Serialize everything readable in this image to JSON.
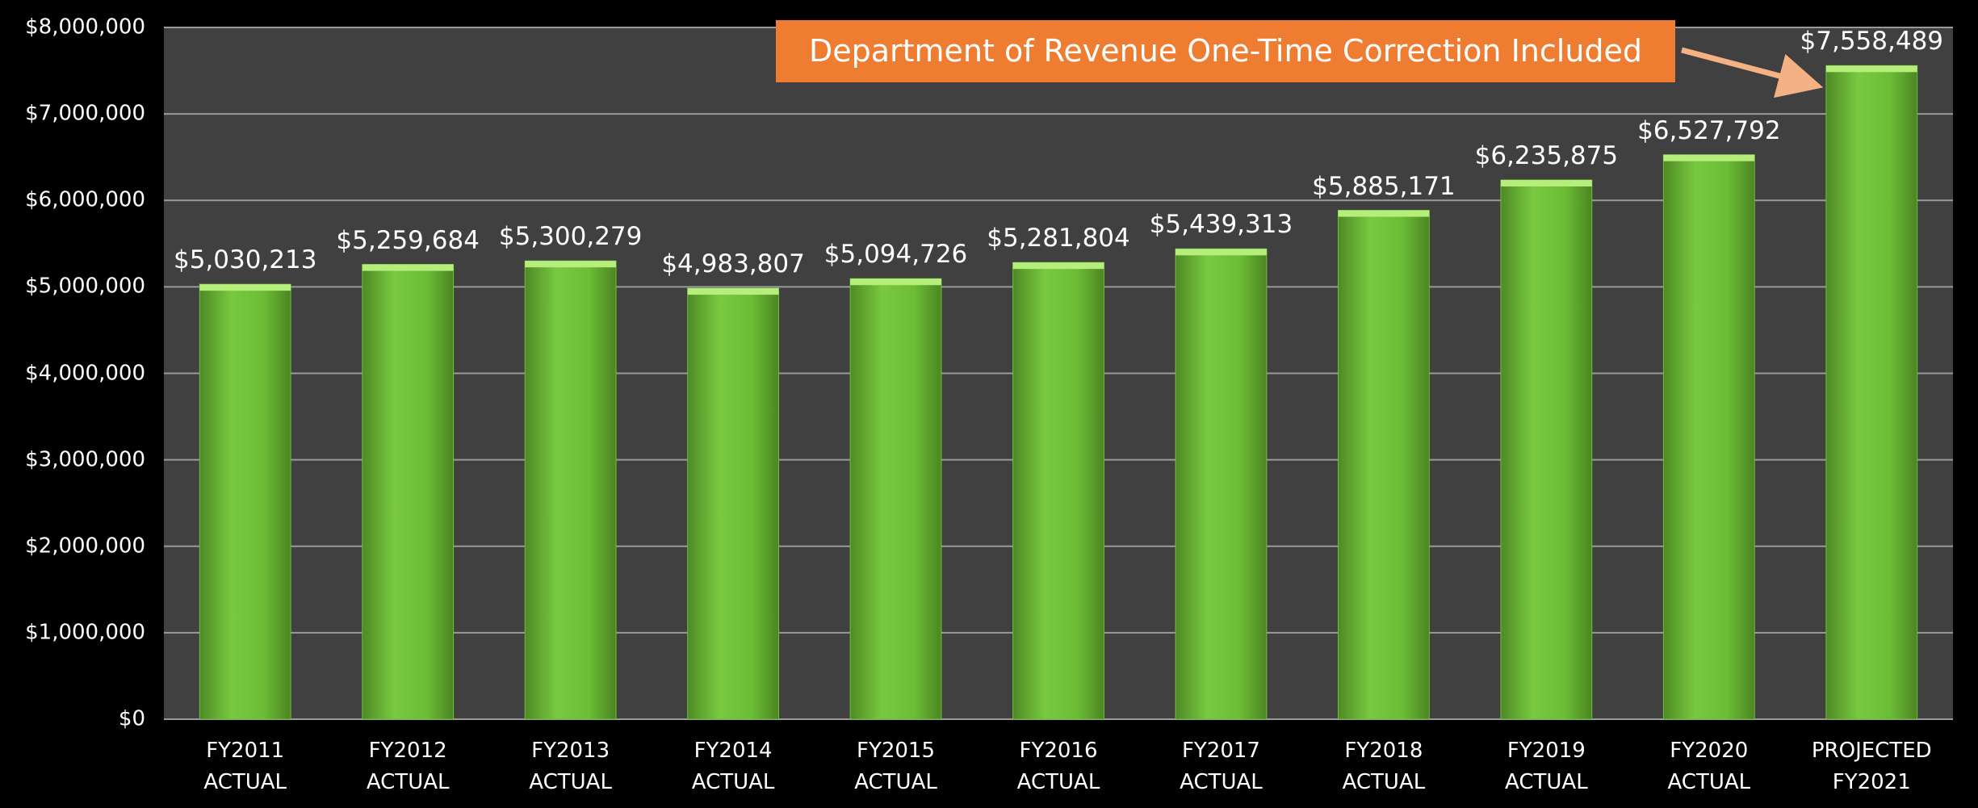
{
  "chart_data": {
    "type": "bar",
    "annotation": "Department of Revenue One-Time Correction Included",
    "categories": [
      "FY2011\nACTUAL",
      "FY2012\nACTUAL",
      "FY2013\nACTUAL",
      "FY2014\nACTUAL",
      "FY2015\nACTUAL",
      "FY2016\nACTUAL",
      "FY2017\nACTUAL",
      "FY2018\nACTUAL",
      "FY2019\nACTUAL",
      "FY2020\nACTUAL",
      "PROJECTED\nFY2021"
    ],
    "values": [
      5030213,
      5259684,
      5300279,
      4983807,
      5094726,
      5281804,
      5439313,
      5885171,
      6235875,
      6527792,
      7558489
    ],
    "value_labels": [
      "$5,030,213",
      "$5,259,684",
      "$5,300,279",
      "$4,983,807",
      "$5,094,726",
      "$5,281,804",
      "$5,439,313",
      "$5,885,171",
      "$6,235,875",
      "$6,527,792",
      "$7,558,489"
    ],
    "color": "#6fbf3a",
    "ylim": [
      0,
      8000000
    ],
    "yticks": [
      {
        "value": 0,
        "label": "$0"
      },
      {
        "value": 1000000,
        "label": "$1,000,000"
      },
      {
        "value": 2000000,
        "label": "$2,000,000"
      },
      {
        "value": 3000000,
        "label": "$3,000,000"
      },
      {
        "value": 4000000,
        "label": "$4,000,000"
      },
      {
        "value": 5000000,
        "label": "$5,000,000"
      },
      {
        "value": 6000000,
        "label": "$6,000,000"
      },
      {
        "value": 7000000,
        "label": "$7,000,000"
      },
      {
        "value": 8000000,
        "label": "$8,000,000"
      }
    ],
    "grid": true
  }
}
